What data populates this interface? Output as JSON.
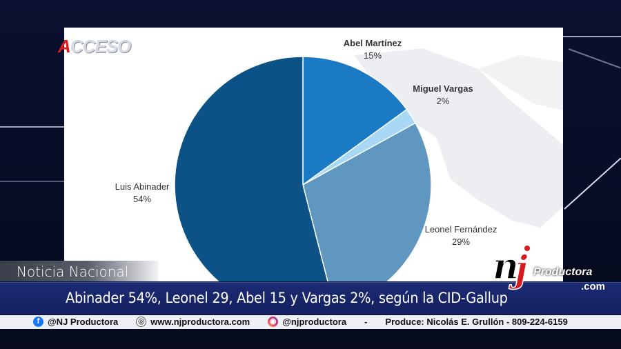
{
  "logo": {
    "letter": "A",
    "rest": "CCESO"
  },
  "chart_data": {
    "type": "pie",
    "slices": [
      {
        "label": "Abel Martínez",
        "value": 15,
        "value_label": "15%",
        "color": "#1a7bc4"
      },
      {
        "label": "Miguel Vargas",
        "value": 2,
        "value_label": "2%",
        "color": "#a8d8f5"
      },
      {
        "label": "Leonel Fernández",
        "value": 29,
        "value_label": "29%",
        "color": "#5f97c1"
      },
      {
        "label": "Luis Abinader",
        "value": 54,
        "value_label": "54%",
        "color": "#0d5286"
      }
    ]
  },
  "lower_third": {
    "tag": "Noticia Nacional",
    "headline": "Abinader 54%, Leonel 29, Abel 15 y Vargas 2%, según la CID-Gallup"
  },
  "brand": {
    "nj": "NJ",
    "name": "Productora",
    "domain": ".com"
  },
  "ticker": {
    "facebook": "@NJ Productora",
    "website": "www.njproductora.com",
    "instagram": "@njproductora",
    "separator": "-",
    "produce": "Produce: Nicolás E. Grullón - 809-224-6159"
  }
}
